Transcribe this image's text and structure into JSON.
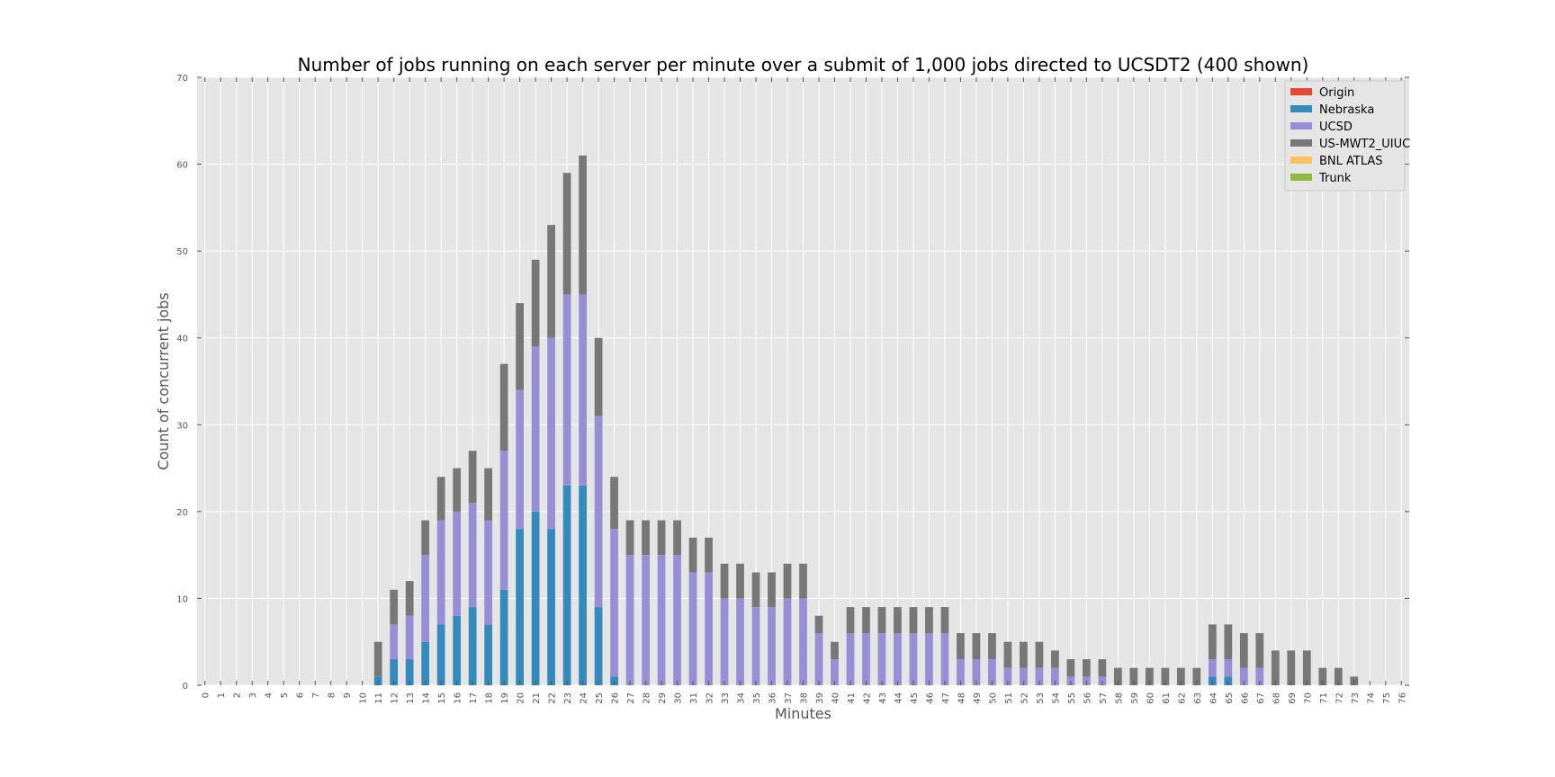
{
  "chart_data": {
    "type": "bar",
    "stacked": true,
    "title": "Number of jobs running on each server per minute over a submit of 1,000 jobs directed to UCSDT2 (400 shown)",
    "xlabel": "Minutes",
    "ylabel": "Count of concurrent jobs",
    "ylim": [
      0,
      70
    ],
    "yticks": [
      0,
      10,
      20,
      30,
      40,
      50,
      60,
      70
    ],
    "grid": true,
    "legend_position": "top-right",
    "categories": [
      "0",
      "1",
      "2",
      "3",
      "4",
      "5",
      "6",
      "7",
      "8",
      "9",
      "10",
      "11",
      "12",
      "13",
      "14",
      "15",
      "16",
      "17",
      "18",
      "19",
      "20",
      "21",
      "22",
      "23",
      "24",
      "25",
      "26",
      "27",
      "28",
      "29",
      "30",
      "31",
      "32",
      "33",
      "34",
      "35",
      "36",
      "37",
      "38",
      "39",
      "40",
      "41",
      "42",
      "43",
      "44",
      "45",
      "46",
      "47",
      "48",
      "49",
      "50",
      "51",
      "52",
      "53",
      "54",
      "55",
      "56",
      "57",
      "58",
      "59",
      "60",
      "61",
      "62",
      "63",
      "64",
      "65",
      "66",
      "67",
      "68",
      "69",
      "70",
      "71",
      "72",
      "73",
      "74",
      "75",
      "76"
    ],
    "series": [
      {
        "name": "Origin",
        "color": "#e24a33",
        "values": [
          0,
          0,
          0,
          0,
          0,
          0,
          0,
          0,
          0,
          0,
          0,
          0,
          0,
          0,
          0,
          0,
          0,
          0,
          0,
          0,
          0,
          0,
          0,
          0,
          0,
          0,
          0,
          0,
          0,
          0,
          0,
          0,
          0,
          0,
          0,
          0,
          0,
          0,
          0,
          0,
          0,
          0,
          0,
          0,
          0,
          0,
          0,
          0,
          0,
          0,
          0,
          0,
          0,
          0,
          0,
          0,
          0,
          0,
          0,
          0,
          0,
          0,
          0,
          0,
          0,
          0,
          0,
          0,
          0,
          0,
          0,
          0,
          0,
          0,
          0,
          0,
          0
        ]
      },
      {
        "name": "Nebraska",
        "color": "#348abd",
        "values": [
          0,
          0,
          0,
          0,
          0,
          0,
          0,
          0,
          0,
          0,
          0,
          1,
          3,
          3,
          5,
          7,
          8,
          9,
          7,
          11,
          18,
          20,
          18,
          23,
          23,
          9,
          1,
          0,
          0,
          0,
          0,
          0,
          0,
          0,
          0,
          0,
          0,
          0,
          0,
          0,
          0,
          0,
          0,
          0,
          0,
          0,
          0,
          0,
          0,
          0,
          0,
          0,
          0,
          0,
          0,
          0,
          0,
          0,
          0,
          0,
          0,
          0,
          0,
          0,
          1,
          1,
          0,
          0,
          0,
          0,
          0,
          0,
          0,
          0,
          0,
          0,
          0
        ]
      },
      {
        "name": "UCSD",
        "color": "#988ed5",
        "values": [
          0,
          0,
          0,
          0,
          0,
          0,
          0,
          0,
          0,
          0,
          0,
          0,
          4,
          5,
          10,
          12,
          12,
          12,
          12,
          16,
          16,
          19,
          22,
          22,
          22,
          22,
          17,
          15,
          15,
          15,
          15,
          13,
          13,
          10,
          10,
          9,
          9,
          10,
          10,
          6,
          3,
          6,
          6,
          6,
          6,
          6,
          6,
          6,
          3,
          3,
          3,
          2,
          2,
          2,
          2,
          1,
          1,
          1,
          0,
          0,
          0,
          0,
          0,
          0,
          2,
          2,
          2,
          2,
          0,
          0,
          0,
          0,
          0,
          0,
          0,
          0,
          0
        ]
      },
      {
        "name": "US-MWT2_UIUC",
        "color": "#777777",
        "values": [
          0,
          0,
          0,
          0,
          0,
          0,
          0,
          0,
          0,
          0,
          0,
          4,
          4,
          4,
          4,
          5,
          5,
          6,
          6,
          10,
          10,
          10,
          13,
          14,
          16,
          9,
          6,
          4,
          4,
          4,
          4,
          4,
          4,
          4,
          4,
          4,
          4,
          4,
          4,
          2,
          2,
          3,
          3,
          3,
          3,
          3,
          3,
          3,
          3,
          3,
          3,
          3,
          3,
          3,
          2,
          2,
          2,
          2,
          2,
          2,
          2,
          2,
          2,
          2,
          4,
          4,
          4,
          4,
          4,
          4,
          4,
          2,
          2,
          1,
          0,
          0,
          0
        ]
      },
      {
        "name": "BNL ATLAS",
        "color": "#fbc15e",
        "values": [
          0,
          0,
          0,
          0,
          0,
          0,
          0,
          0,
          0,
          0,
          0,
          0,
          0,
          0,
          0,
          0,
          0,
          0,
          0,
          0,
          0,
          0,
          0,
          0,
          0,
          0,
          0,
          0,
          0,
          0,
          0,
          0,
          0,
          0,
          0,
          0,
          0,
          0,
          0,
          0,
          0,
          0,
          0,
          0,
          0,
          0,
          0,
          0,
          0,
          0,
          0,
          0,
          0,
          0,
          0,
          0,
          0,
          0,
          0,
          0,
          0,
          0,
          0,
          0,
          0,
          0,
          0,
          0,
          0,
          0,
          0,
          0,
          0,
          0,
          0,
          0,
          0
        ]
      },
      {
        "name": "Trunk",
        "color": "#8eba42",
        "values": [
          0,
          0,
          0,
          0,
          0,
          0,
          0,
          0,
          0,
          0,
          0,
          0,
          0,
          0,
          0,
          0,
          0,
          0,
          0,
          0,
          0,
          0,
          0,
          0,
          0,
          0,
          0,
          0,
          0,
          0,
          0,
          0,
          0,
          0,
          0,
          0,
          0,
          0,
          0,
          0,
          0,
          0,
          0,
          0,
          0,
          0,
          0,
          0,
          0,
          0,
          0,
          0,
          0,
          0,
          0,
          0,
          0,
          0,
          0,
          0,
          0,
          0,
          0,
          0,
          0,
          0,
          0,
          0,
          0,
          0,
          0,
          0,
          0,
          0,
          0,
          0,
          0
        ]
      }
    ]
  }
}
